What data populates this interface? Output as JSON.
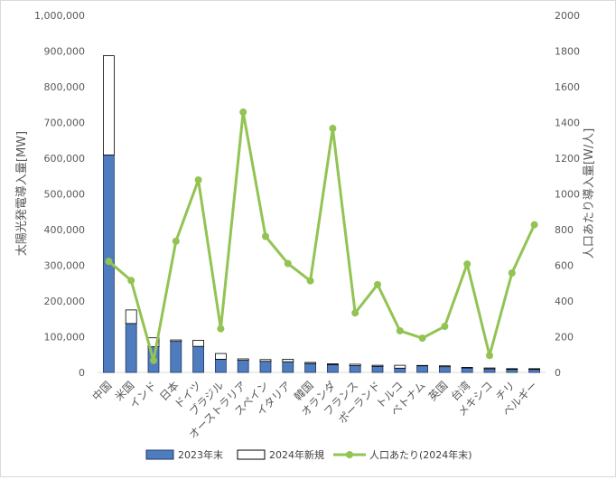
{
  "chart_data": {
    "type": "bar+line",
    "categories": [
      "中国",
      "米国",
      "インド",
      "日本",
      "ドイツ",
      "ブラジル",
      "オーストラリア",
      "スペイン",
      "イタリア",
      "韓国",
      "オランダ",
      "フランス",
      "ポーランド",
      "トルコ",
      "ベトナム",
      "英国",
      "台湾",
      "メキシコ",
      "チリ",
      "ベルギー"
    ],
    "series": [
      {
        "name": "2023年末",
        "type": "bar-stacked",
        "axis": "left",
        "color": "#4e7cbf",
        "values": [
          609000,
          137000,
          72000,
          87000,
          73000,
          37000,
          34000,
          31000,
          30000,
          25000,
          22000,
          19000,
          17000,
          12000,
          18500,
          16000,
          12500,
          10000,
          8500,
          8500
        ]
      },
      {
        "name": "2024年新規",
        "type": "bar-stacked",
        "axis": "left",
        "color": "#ffffff",
        "values": [
          278000,
          38000,
          25000,
          4000,
          17000,
          16000,
          4000,
          5000,
          7000,
          3000,
          2000,
          4000,
          3000,
          8000,
          1000,
          2500,
          1500,
          2500,
          2000,
          2000
        ]
      },
      {
        "name": "人口あたり(2024年末)",
        "type": "line",
        "axis": "right",
        "color": "#92c353",
        "values": [
          622,
          515,
          67,
          735,
          1078,
          245,
          1458,
          762,
          610,
          513,
          1367,
          333,
          492,
          233,
          192,
          258,
          607,
          95,
          557,
          827
        ]
      }
    ],
    "ylabel_left": "太陽光発電導入量[MW]",
    "ylabel_right": "人口あたり導入量[W/人]",
    "ylim_left": [
      0,
      1000000
    ],
    "ylim_right": [
      0,
      2000
    ],
    "yticks_left": [
      "0",
      "100,000",
      "200,000",
      "300,000",
      "400,000",
      "500,000",
      "600,000",
      "700,000",
      "800,000",
      "900,000",
      "1,000,000"
    ],
    "yticks_right": [
      "0",
      "200",
      "400",
      "600",
      "800",
      "1000",
      "1200",
      "1400",
      "1600",
      "1800",
      "2000"
    ],
    "grid": false,
    "legend_position": "bottom"
  }
}
